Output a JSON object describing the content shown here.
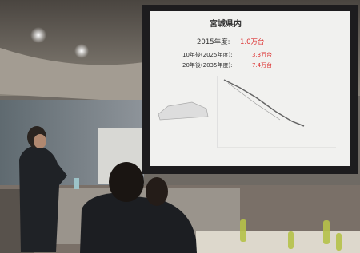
{
  "slide": {
    "title": "宮城県内",
    "lines": [
      {
        "label": "2015年度:",
        "value": "1.0万台"
      },
      {
        "label": "10年後(2025年度):",
        "value": "3.3万台"
      },
      {
        "label": "20年後(2035年度):",
        "value": "7.4万台"
      }
    ]
  }
}
